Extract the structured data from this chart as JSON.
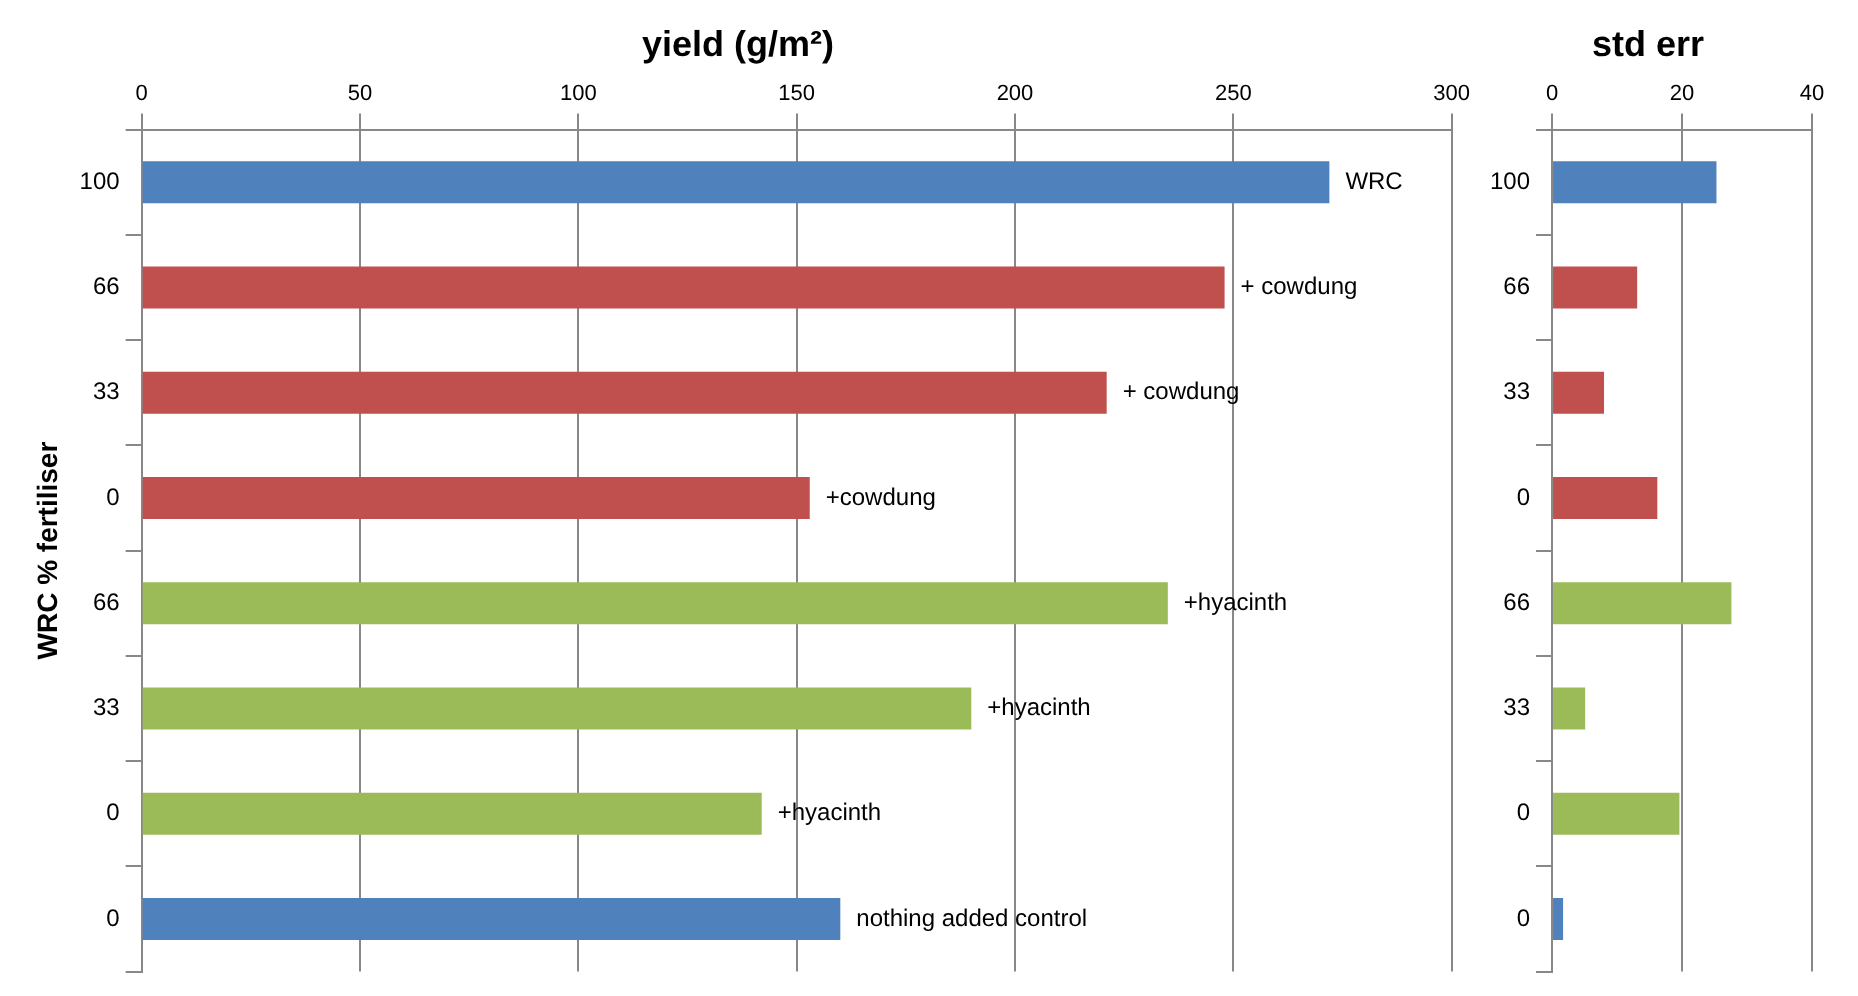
{
  "chart_data": [
    {
      "type": "bar",
      "orientation": "horizontal",
      "title": "yield (g/m²)",
      "ylabel": "WRC % fertiliser",
      "categories": [
        "100",
        "66",
        "33",
        "0",
        "66",
        "33",
        "0",
        "0"
      ],
      "values": [
        272,
        248,
        221,
        153,
        235,
        190,
        142,
        160
      ],
      "colors": [
        "#4f81bd",
        "#c0504d",
        "#c0504d",
        "#c0504d",
        "#9bbb59",
        "#9bbb59",
        "#9bbb59",
        "#4f81bd"
      ],
      "xlim": [
        0,
        300
      ],
      "xticks": [
        0,
        50,
        100,
        150,
        200,
        250,
        300
      ],
      "grid": "x",
      "annotations": [
        "WRC",
        "+ cowdung",
        "+ cowdung",
        "+cowdung",
        "+hyacinth",
        "+hyacinth",
        "+hyacinth",
        "nothing added control"
      ]
    },
    {
      "type": "bar",
      "orientation": "horizontal",
      "title": "std err",
      "categories": [
        "100",
        "66",
        "33",
        "0",
        "66",
        "33",
        "0",
        "0"
      ],
      "values": [
        25.3,
        13.1,
        8.0,
        16.2,
        27.6,
        5.1,
        19.6,
        1.7
      ],
      "colors": [
        "#4f81bd",
        "#c0504d",
        "#c0504d",
        "#c0504d",
        "#9bbb59",
        "#9bbb59",
        "#9bbb59",
        "#4f81bd"
      ],
      "xlim": [
        0,
        40
      ],
      "xticks": [
        0,
        20,
        40
      ],
      "grid": "x"
    }
  ]
}
